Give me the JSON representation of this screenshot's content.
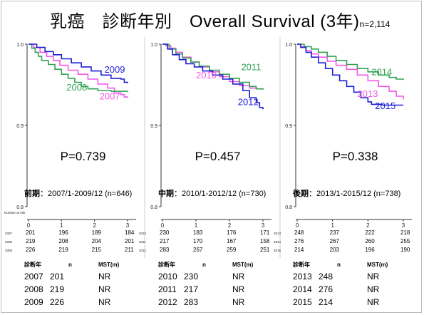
{
  "header": {
    "title": "乳癌　診断年別　Overall Survival (3年)",
    "n_label": "n=2,114"
  },
  "colors": {
    "green": "#33a353",
    "pink": "#f25ae8",
    "blue": "#1f1fd6"
  },
  "risk_header": "Number at risk",
  "chart_data": [
    {
      "type": "line",
      "period_label": "前期",
      "period_range": "：2007/1-2009/12 (n=646)",
      "p_value": "P=0.739",
      "ytick_labels": [
        "1.0",
        "0.9",
        "0.8"
      ],
      "ylim": [
        0.8,
        1.0
      ],
      "xticks": [
        0,
        1,
        2,
        3
      ],
      "xtick_labels": [
        "0",
        "1",
        "2",
        "3"
      ],
      "xlim": [
        0,
        3
      ],
      "series": [
        {
          "name": "2007",
          "color": "pink",
          "points": [
            [
              0,
              1.0
            ],
            [
              0.15,
              0.996
            ],
            [
              0.35,
              0.99
            ],
            [
              0.55,
              0.985
            ],
            [
              0.75,
              0.98
            ],
            [
              0.95,
              0.974
            ],
            [
              1.2,
              0.968
            ],
            [
              1.5,
              0.963
            ],
            [
              1.8,
              0.957
            ],
            [
              2.1,
              0.951
            ],
            [
              2.4,
              0.946
            ],
            [
              2.6,
              0.94
            ],
            [
              2.8,
              0.938
            ],
            [
              2.9,
              0.935
            ],
            [
              3,
              0.934
            ]
          ]
        },
        {
          "name": "2008",
          "color": "green",
          "points": [
            [
              0,
              1.0
            ],
            [
              0.1,
              0.995
            ],
            [
              0.2,
              0.99
            ],
            [
              0.3,
              0.985
            ],
            [
              0.4,
              0.98
            ],
            [
              0.6,
              0.975
            ],
            [
              0.8,
              0.969
            ],
            [
              1.0,
              0.963
            ],
            [
              1.2,
              0.958
            ],
            [
              1.4,
              0.953
            ],
            [
              1.6,
              0.948
            ],
            [
              1.8,
              0.945
            ],
            [
              2.1,
              0.943
            ],
            [
              2.5,
              0.942
            ],
            [
              3,
              0.941
            ]
          ]
        },
        {
          "name": "2009",
          "color": "blue",
          "points": [
            [
              0,
              1.0
            ],
            [
              0.25,
              0.996
            ],
            [
              0.5,
              0.991
            ],
            [
              0.75,
              0.987
            ],
            [
              1.0,
              0.982
            ],
            [
              1.3,
              0.977
            ],
            [
              1.6,
              0.972
            ],
            [
              1.9,
              0.967
            ],
            [
              2.2,
              0.962
            ],
            [
              2.5,
              0.958
            ],
            [
              2.8,
              0.957
            ],
            [
              2.9,
              0.953
            ],
            [
              3,
              0.952
            ]
          ]
        }
      ],
      "labels": [
        {
          "text": "2009",
          "color": "blue",
          "x": 2.3,
          "y": 0.965
        },
        {
          "text": "2008",
          "color": "green",
          "x": 1.15,
          "y": 0.943
        },
        {
          "text": "2007",
          "color": "pink",
          "x": 2.15,
          "y": 0.932
        }
      ],
      "risk_rows": [
        {
          "year": "2007",
          "values": [
            "201",
            "196",
            "189",
            "184"
          ]
        },
        {
          "year": "2008",
          "values": [
            "219",
            "208",
            "204",
            "201"
          ]
        },
        {
          "year": "2009",
          "values": [
            "226",
            "219",
            "215",
            "211"
          ]
        }
      ],
      "summary_headers": [
        "診断年",
        "n",
        "MST(m)"
      ],
      "summary_rows": [
        {
          "year": "2007",
          "n": "201",
          "mst": "NR"
        },
        {
          "year": "2008",
          "n": "219",
          "mst": "NR"
        },
        {
          "year": "2009",
          "n": "226",
          "mst": "NR"
        }
      ]
    },
    {
      "type": "line",
      "period_label": "中期",
      "period_range": "：2010/1-2012/12 (n=730)",
      "p_value": "P=0.457",
      "ytick_labels": [
        "1.0",
        "0.9",
        "0.8"
      ],
      "ylim": [
        0.8,
        1.0
      ],
      "xticks": [
        0,
        1,
        2,
        3
      ],
      "xtick_labels": [
        "0",
        "1",
        "2",
        "3"
      ],
      "xlim": [
        0,
        3
      ],
      "series": [
        {
          "name": "2010",
          "color": "pink",
          "points": [
            [
              0,
              1.0
            ],
            [
              0.1,
              0.998
            ],
            [
              0.25,
              0.995
            ],
            [
              0.4,
              0.99
            ],
            [
              0.6,
              0.984
            ],
            [
              0.85,
              0.978
            ],
            [
              1.1,
              0.972
            ],
            [
              1.4,
              0.966
            ],
            [
              1.7,
              0.96
            ],
            [
              2.0,
              0.954
            ],
            [
              2.3,
              0.949
            ],
            [
              2.6,
              0.946
            ],
            [
              2.8,
              0.945
            ],
            [
              3,
              0.944
            ]
          ]
        },
        {
          "name": "2011",
          "color": "green",
          "points": [
            [
              0,
              1.0
            ],
            [
              0.2,
              0.994
            ],
            [
              0.4,
              0.988
            ],
            [
              0.6,
              0.983
            ],
            [
              0.85,
              0.978
            ],
            [
              1.1,
              0.973
            ],
            [
              1.4,
              0.968
            ],
            [
              1.7,
              0.963
            ],
            [
              2.0,
              0.958
            ],
            [
              2.3,
              0.953
            ],
            [
              2.6,
              0.948
            ],
            [
              2.8,
              0.945
            ],
            [
              3,
              0.944
            ]
          ]
        },
        {
          "name": "2012",
          "color": "blue",
          "points": [
            [
              0,
              1.0
            ],
            [
              0.15,
              0.994
            ],
            [
              0.3,
              0.987
            ],
            [
              0.5,
              0.981
            ],
            [
              0.7,
              0.976
            ],
            [
              0.95,
              0.972
            ],
            [
              1.2,
              0.967
            ],
            [
              1.5,
              0.962
            ],
            [
              1.8,
              0.957
            ],
            [
              2.1,
              0.951
            ],
            [
              2.4,
              0.943
            ],
            [
              2.6,
              0.934
            ],
            [
              2.8,
              0.928
            ],
            [
              2.9,
              0.922
            ],
            [
              3,
              0.92
            ]
          ]
        }
      ],
      "labels": [
        {
          "text": "2011",
          "color": "green",
          "x": 2.35,
          "y": 0.968
        },
        {
          "text": "2010",
          "color": "pink",
          "x": 1.0,
          "y": 0.958
        },
        {
          "text": "2012",
          "color": "blue",
          "x": 2.25,
          "y": 0.925
        }
      ],
      "risk_rows": [
        {
          "year": "2010",
          "values": [
            "230",
            "183",
            "176",
            "171"
          ]
        },
        {
          "year": "2011",
          "values": [
            "217",
            "170",
            "167",
            "158"
          ]
        },
        {
          "year": "2012",
          "values": [
            "283",
            "267",
            "259",
            "251"
          ]
        }
      ],
      "summary_headers": [
        "診断年",
        "n",
        "MST(m)"
      ],
      "summary_rows": [
        {
          "year": "2010",
          "n": "230",
          "mst": "NR"
        },
        {
          "year": "2011",
          "n": "217",
          "mst": "NR"
        },
        {
          "year": "2012",
          "n": "283",
          "mst": "NR"
        }
      ]
    },
    {
      "type": "line",
      "period_label": "後期",
      "period_range": "：2013/1-2015/12 (n=738)",
      "p_value": "P=0.338",
      "ytick_labels": [
        "1.0",
        "0.9",
        "0.8"
      ],
      "ylim": [
        0.8,
        1.0
      ],
      "xticks": [
        0,
        1,
        2,
        3
      ],
      "xtick_labels": [
        "0",
        "1",
        "2",
        "3"
      ],
      "xlim": [
        0,
        3
      ],
      "series": [
        {
          "name": "2013",
          "color": "pink",
          "points": [
            [
              0,
              1.0
            ],
            [
              0.1,
              0.997
            ],
            [
              0.25,
              0.992
            ],
            [
              0.4,
              0.988
            ],
            [
              0.6,
              0.984
            ],
            [
              0.85,
              0.979
            ],
            [
              1.1,
              0.974
            ],
            [
              1.4,
              0.969
            ],
            [
              1.7,
              0.962
            ],
            [
              2.0,
              0.955
            ],
            [
              2.3,
              0.948
            ],
            [
              2.6,
              0.942
            ],
            [
              2.8,
              0.936
            ],
            [
              3,
              0.932
            ]
          ]
        },
        {
          "name": "2014",
          "color": "green",
          "points": [
            [
              0,
              1.0
            ],
            [
              0.2,
              0.997
            ],
            [
              0.4,
              0.994
            ],
            [
              0.6,
              0.99
            ],
            [
              0.85,
              0.985
            ],
            [
              1.1,
              0.98
            ],
            [
              1.4,
              0.975
            ],
            [
              1.7,
              0.97
            ],
            [
              2.0,
              0.966
            ],
            [
              2.3,
              0.962
            ],
            [
              2.6,
              0.959
            ],
            [
              2.8,
              0.957
            ],
            [
              3,
              0.956
            ]
          ]
        },
        {
          "name": "2015",
          "color": "blue",
          "points": [
            [
              0,
              1.0
            ],
            [
              0.1,
              0.996
            ],
            [
              0.25,
              0.99
            ],
            [
              0.4,
              0.984
            ],
            [
              0.6,
              0.977
            ],
            [
              0.8,
              0.97
            ],
            [
              1.0,
              0.962
            ],
            [
              1.2,
              0.955
            ],
            [
              1.4,
              0.948
            ],
            [
              1.6,
              0.941
            ],
            [
              1.8,
              0.934
            ],
            [
              2.0,
              0.929
            ],
            [
              2.1,
              0.926
            ],
            [
              2.4,
              0.925
            ],
            [
              3,
              0.925
            ]
          ]
        }
      ],
      "labels": [
        {
          "text": "2014",
          "color": "green",
          "x": 2.1,
          "y": 0.962
        },
        {
          "text": "2013",
          "color": "pink",
          "x": 1.7,
          "y": 0.935
        },
        {
          "text": "2015",
          "color": "blue",
          "x": 2.2,
          "y": 0.92
        }
      ],
      "risk_rows": [
        {
          "year": "2013",
          "values": [
            "248",
            "237",
            "222",
            "218"
          ]
        },
        {
          "year": "2014",
          "values": [
            "276",
            "267",
            "260",
            "255"
          ]
        },
        {
          "year": "2015",
          "values": [
            "214",
            "203",
            "196",
            "190"
          ]
        }
      ],
      "summary_headers": [
        "診断年",
        "n",
        "MST(m)"
      ],
      "summary_rows": [
        {
          "year": "2013",
          "n": "248",
          "mst": "NR"
        },
        {
          "year": "2014",
          "n": "276",
          "mst": "NR"
        },
        {
          "year": "2015",
          "n": "214",
          "mst": "NR"
        }
      ]
    }
  ]
}
